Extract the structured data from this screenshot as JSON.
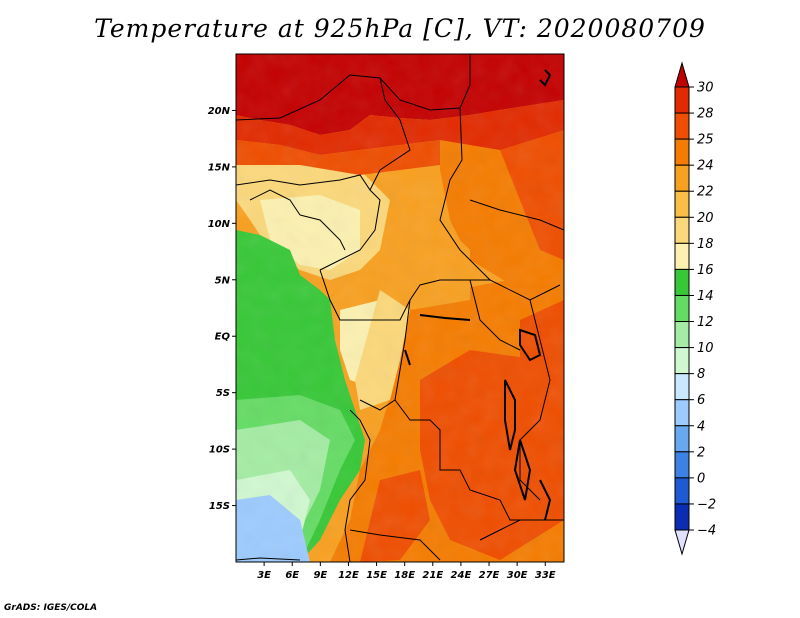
{
  "title": "Temperature at 925hPa [C], VT: 2020080709",
  "credit": "GrADS: IGES/COLA",
  "map": {
    "lat_labels": [
      "20N",
      "15N",
      "10N",
      "5N",
      "EQ",
      "5S",
      "10S",
      "15S"
    ],
    "lat_values": [
      20,
      15,
      10,
      5,
      0,
      -5,
      -10,
      -15
    ],
    "lon_labels": [
      "3E",
      "6E",
      "9E",
      "12E",
      "15E",
      "18E",
      "21E",
      "24E",
      "27E",
      "30E",
      "33E"
    ],
    "lon_values": [
      3,
      6,
      9,
      12,
      15,
      18,
      21,
      24,
      27,
      30,
      33
    ],
    "lat_range": [
      -20,
      25
    ],
    "lon_range": [
      0,
      35
    ]
  },
  "colorbar": {
    "labels": [
      "30",
      "28",
      "25",
      "24",
      "22",
      "20",
      "18",
      "16",
      "14",
      "12",
      "10",
      "8",
      "6",
      "4",
      "2",
      "0",
      "−2",
      "−4"
    ],
    "colors": [
      "#c00000",
      "#e22a00",
      "#ef4e00",
      "#f57c00",
      "#f8a020",
      "#f9bf45",
      "#fbd87a",
      "#fcf1b0",
      "#37c837",
      "#64dc64",
      "#a4eca4",
      "#d0f8d0",
      "#c8e8ff",
      "#9ccbff",
      "#68a8f0",
      "#3c82e4",
      "#1e5ad2",
      "#0a2db4",
      "#001b84"
    ],
    "top_color": "#c00000",
    "bottom_color": "#e0e0ff"
  },
  "colors": {
    "hot": "#c40000",
    "warm": "#ef4e00",
    "mild": "#f8a020",
    "pale": "#fcf1b0",
    "green": "#37c837",
    "light_green": "#64dc64",
    "pale_green": "#a4eca4",
    "sky": "#9ccbff",
    "lake": "#000000"
  }
}
